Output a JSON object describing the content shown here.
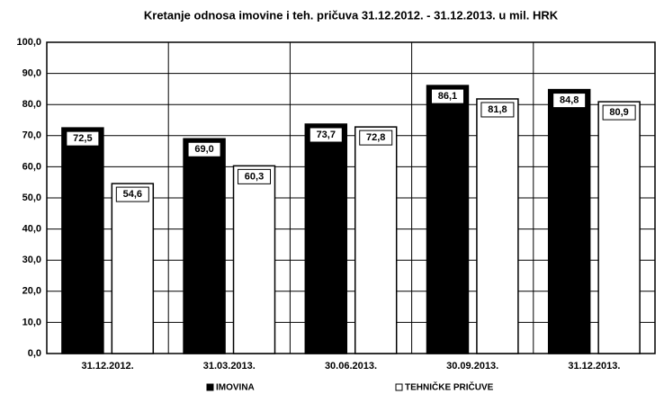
{
  "chart_data": {
    "type": "bar",
    "title": "Kretanje odnosa imovine i teh. pričuva 31.12.2012. - 31.12.2013. u mil. HRK",
    "categories": [
      "31.12.2012.",
      "31.03.2013.",
      "30.06.2013.",
      "30.09.2013.",
      "31.12.2013."
    ],
    "series": [
      {
        "name": "IMOVINA",
        "color": "#000000",
        "values": [
          72.5,
          69.0,
          73.7,
          86.1,
          84.8
        ],
        "value_labels": [
          "72,5",
          "69,0",
          "73,7",
          "86,1",
          "84,8"
        ]
      },
      {
        "name": "TEHNIČKE PRIČUVE",
        "color": "#ffffff",
        "values": [
          54.6,
          60.3,
          72.8,
          81.8,
          80.9
        ],
        "value_labels": [
          "54,6",
          "60,3",
          "72,8",
          "81,8",
          "80,9"
        ]
      }
    ],
    "ylim": [
      0,
      100
    ],
    "yticks": [
      {
        "value": 0,
        "label": "0,0"
      },
      {
        "value": 10,
        "label": "10,0"
      },
      {
        "value": 20,
        "label": "20,0"
      },
      {
        "value": 30,
        "label": "30,0"
      },
      {
        "value": 40,
        "label": "40,0"
      },
      {
        "value": 50,
        "label": "50,0"
      },
      {
        "value": 60,
        "label": "60,0"
      },
      {
        "value": 70,
        "label": "70,0"
      },
      {
        "value": 80,
        "label": "80,0"
      },
      {
        "value": 90,
        "label": "90,0"
      },
      {
        "value": 100,
        "label": "100,0"
      }
    ],
    "grid": true,
    "legend": "bottom"
  }
}
